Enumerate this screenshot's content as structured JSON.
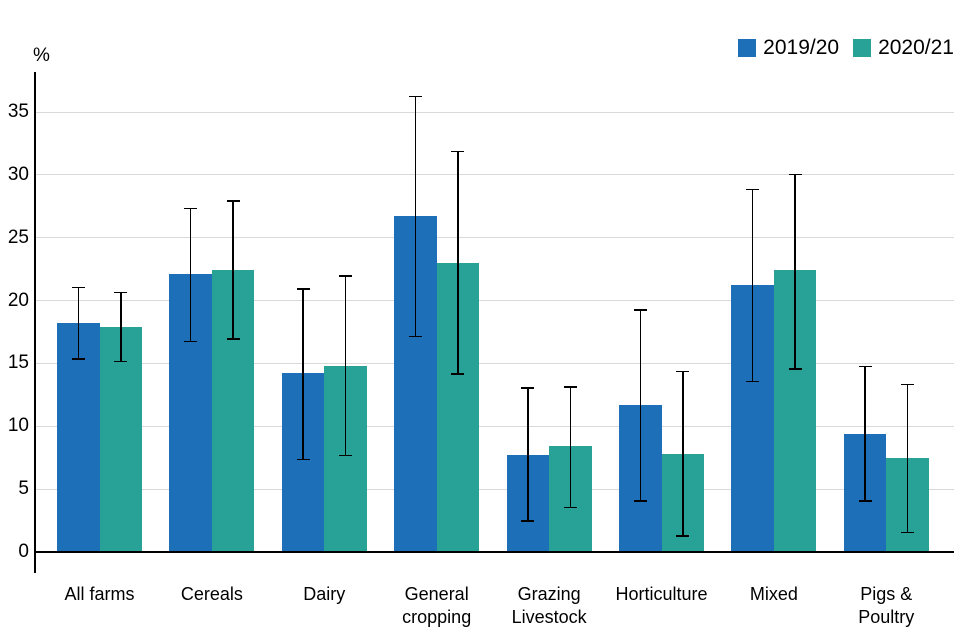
{
  "chart_data": {
    "type": "bar",
    "title": "",
    "ylabel": "%",
    "ylim": [
      0,
      35
    ],
    "yticks": [
      0,
      5,
      10,
      15,
      20,
      25,
      30,
      35
    ],
    "grid": true,
    "legend_position": "top-right",
    "error_bars": true,
    "categories": [
      "All farms",
      "Cereals",
      "Dairy",
      "General\ncropping",
      "Grazing\nLivestock",
      "Horticulture",
      "Mixed",
      "Pigs &\nPoultry"
    ],
    "series": [
      {
        "name": "2019/20",
        "color": "#1d70b8",
        "values": [
          18.2,
          22.1,
          14.2,
          26.7,
          7.7,
          11.7,
          21.2,
          9.4
        ],
        "error_low": [
          15.3,
          16.7,
          7.3,
          17.1,
          2.4,
          4.0,
          13.5,
          4.0
        ],
        "error_high": [
          21.1,
          27.4,
          21.0,
          36.3,
          13.1,
          19.3,
          28.9,
          14.8
        ]
      },
      {
        "name": "2020/21",
        "color": "#28a197",
        "values": [
          17.9,
          22.4,
          14.8,
          23.0,
          8.4,
          7.8,
          22.4,
          7.5
        ],
        "error_low": [
          15.1,
          16.9,
          7.6,
          14.1,
          3.5,
          1.2,
          14.5,
          1.5
        ],
        "error_high": [
          20.7,
          28.0,
          22.0,
          31.9,
          13.2,
          14.4,
          30.1,
          13.4
        ]
      }
    ],
    "colors": {
      "grid": "#d9d9d9",
      "axis": "#000000",
      "text": "#000000",
      "background": "#ffffff"
    }
  }
}
